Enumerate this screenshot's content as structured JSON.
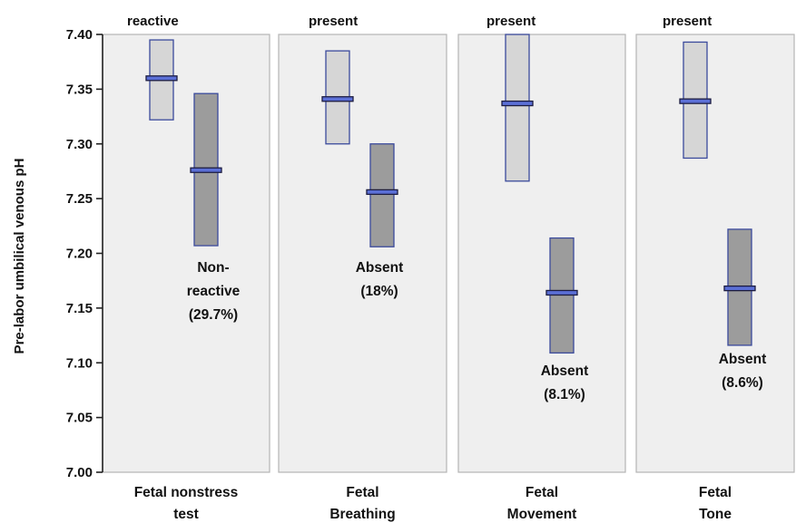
{
  "chart_data": {
    "type": "box",
    "ylabel": "Pre-labor umbilical venous pH",
    "ylim": [
      7.0,
      7.4
    ],
    "yticks": [
      "7.00",
      "7.05",
      "7.10",
      "7.15",
      "7.20",
      "7.25",
      "7.30",
      "7.35",
      "7.40"
    ],
    "grid": false,
    "colors": {
      "panel_bg": "#efefef",
      "panel_border": "#b5b5b5",
      "box_light": "#d6d6d6",
      "box_dark": "#9c9c9c",
      "box_border": "#3b4a9c",
      "median_line": "#5b6fd6"
    },
    "panels": [
      {
        "name_lines": [
          "Fetal nonstress",
          "test"
        ],
        "top_label": "reactive",
        "groups": [
          {
            "label_lines": [],
            "low": 7.322,
            "high": 7.395,
            "median": 7.36,
            "shade": "light"
          },
          {
            "label_lines": [
              "Non-",
              "reactive",
              "(29.7%)"
            ],
            "low": 7.207,
            "high": 7.346,
            "median": 7.276,
            "shade": "dark"
          }
        ]
      },
      {
        "name_lines": [
          "Fetal",
          "Breathing"
        ],
        "top_label": "present",
        "groups": [
          {
            "label_lines": [],
            "low": 7.3,
            "high": 7.385,
            "median": 7.341,
            "shade": "light"
          },
          {
            "label_lines": [
              "Absent",
              "(18%)"
            ],
            "low": 7.206,
            "high": 7.3,
            "median": 7.256,
            "shade": "dark"
          }
        ]
      },
      {
        "name_lines": [
          "Fetal",
          "Movement"
        ],
        "top_label": "present",
        "groups": [
          {
            "label_lines": [],
            "low": 7.266,
            "high": 7.4,
            "median": 7.337,
            "shade": "light"
          },
          {
            "label_lines": [
              "Absent",
              "(8.1%)"
            ],
            "low": 7.109,
            "high": 7.214,
            "median": 7.164,
            "shade": "dark"
          }
        ]
      },
      {
        "name_lines": [
          "Fetal",
          "Tone"
        ],
        "top_label": "present",
        "groups": [
          {
            "label_lines": [],
            "low": 7.287,
            "high": 7.393,
            "median": 7.339,
            "shade": "light"
          },
          {
            "label_lines": [
              "Absent",
              "(8.6%)"
            ],
            "low": 7.116,
            "high": 7.222,
            "median": 7.168,
            "shade": "dark"
          }
        ]
      }
    ]
  }
}
